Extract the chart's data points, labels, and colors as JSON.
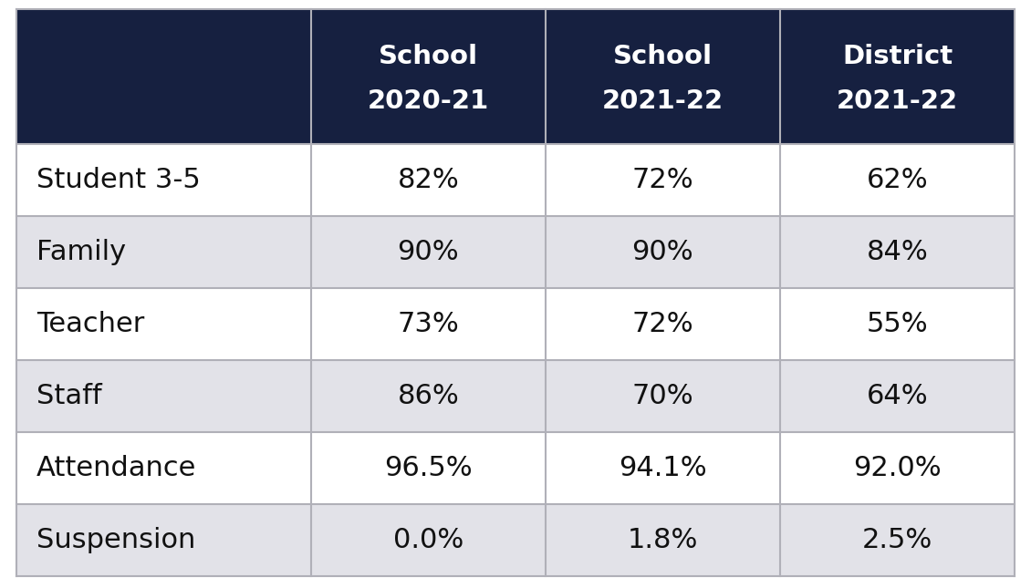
{
  "col_headers": [
    [
      "School",
      "2020-21"
    ],
    [
      "School",
      "2021-22"
    ],
    [
      "District",
      "2021-22"
    ]
  ],
  "rows": [
    [
      "Student 3-5",
      "82%",
      "72%",
      "62%"
    ],
    [
      "Family",
      "90%",
      "90%",
      "84%"
    ],
    [
      "Teacher",
      "73%",
      "72%",
      "55%"
    ],
    [
      "Staff",
      "86%",
      "70%",
      "64%"
    ],
    [
      "Attendance",
      "96.5%",
      "94.1%",
      "92.0%"
    ],
    [
      "Suspension",
      "0.0%",
      "1.8%",
      "2.5%"
    ]
  ],
  "header_bg": "#162040",
  "header_text": "#ffffff",
  "row_bg_odd": "#ffffff",
  "row_bg_even": "#e2e2e8",
  "data_text_color": "#111111",
  "row_label_text_color": "#111111",
  "border_color": "#b0b0b8",
  "fig_width": 11.3,
  "fig_height": 6.45,
  "dpi": 100
}
